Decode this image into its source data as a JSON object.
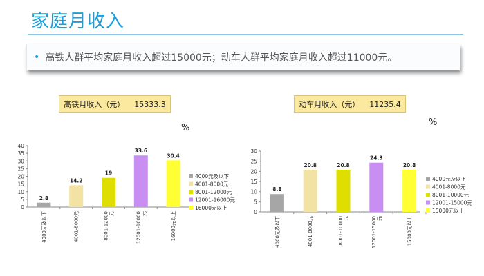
{
  "page": {
    "title": "家庭月收入",
    "bullet": "高铁人群平均家庭月收入超过15000元；动车人群平均家庭月收入超过11000元。"
  },
  "chart_data": [
    {
      "type": "bar",
      "label_prefix": "高铁月收入（元）",
      "label_value": "15333.3",
      "unit": "%",
      "ylim": [
        0,
        40
      ],
      "yticks": [
        0,
        5,
        10,
        15,
        20,
        25,
        30,
        35,
        40
      ],
      "grid": false,
      "legend": "right",
      "categories": [
        "4000元及以下",
        "4001-8000元",
        "8001-12000元",
        "12001-16000元",
        "16000元以上"
      ],
      "tick_lines": [
        [
          "4000元及以下"
        ],
        [
          "4001-8000元"
        ],
        [
          "8001-12000",
          "元"
        ],
        [
          "12001-16000",
          "元"
        ],
        [
          "16000元以上"
        ]
      ],
      "values": [
        2.8,
        14.2,
        19,
        33.6,
        30.4
      ],
      "value_labels": [
        "2.8",
        "14.2",
        "19",
        "33.6",
        "30.4"
      ],
      "colors": [
        "#a6a6a6",
        "#f2e3a4",
        "#dede00",
        "#c88ef2",
        "#ffff33"
      ]
    },
    {
      "type": "bar",
      "label_prefix": "动车月收入（元）",
      "label_value": "11235.4",
      "unit": "%",
      "ylim": [
        0,
        30
      ],
      "yticks": [
        0,
        5,
        10,
        15,
        20,
        25,
        30
      ],
      "grid": false,
      "legend": "right",
      "categories": [
        "4000元及以下",
        "4001-8000元",
        "8001-10000元",
        "12001-15000元",
        "15000元以上"
      ],
      "tick_lines": [
        [
          "4000元及以下"
        ],
        [
          "4001-8000元"
        ],
        [
          "8001-10000",
          "元"
        ],
        [
          "12001-15000",
          "元"
        ],
        [
          "15000元以上"
        ]
      ],
      "values": [
        8.8,
        20.8,
        20.8,
        24.3,
        20.8
      ],
      "value_labels": [
        "8.8",
        "20.8",
        "20.8",
        "24.3",
        "20.8"
      ],
      "colors": [
        "#a6a6a6",
        "#f2e3a4",
        "#dede00",
        "#c88ef2",
        "#ffff33"
      ]
    }
  ]
}
